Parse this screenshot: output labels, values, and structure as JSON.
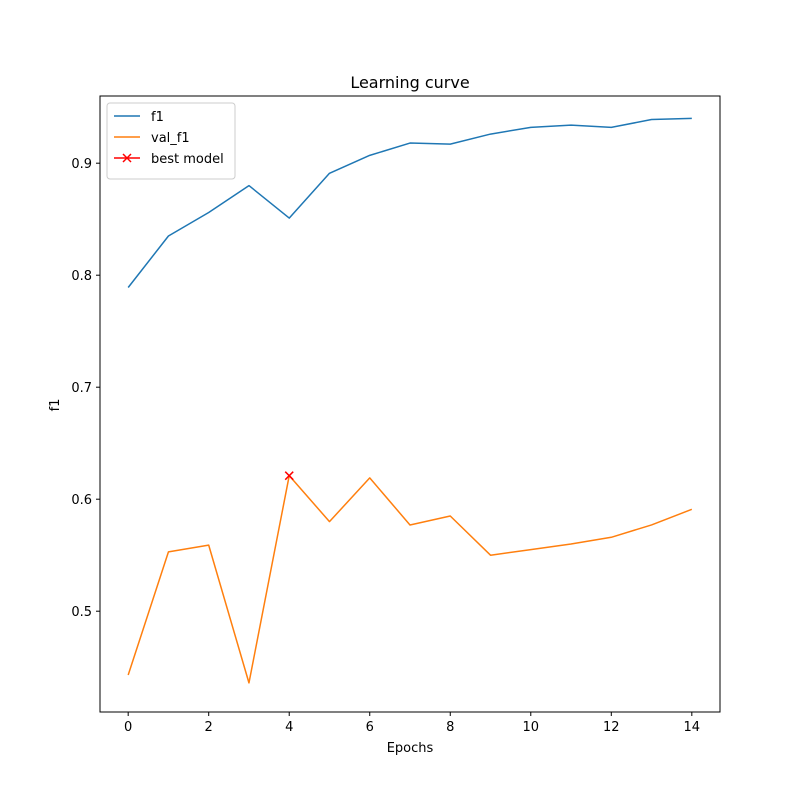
{
  "chart_data": {
    "type": "line",
    "title": "Learning curve",
    "xlabel": "Epochs",
    "ylabel": "f1",
    "xlim": [
      -0.7,
      14.7
    ],
    "ylim": [
      0.41,
      0.96
    ],
    "xticks": [
      0,
      2,
      4,
      6,
      8,
      10,
      12,
      14
    ],
    "yticks": [
      0.5,
      0.6,
      0.7,
      0.8,
      0.9
    ],
    "ytick_labels": [
      "0.5",
      "0.6",
      "0.7",
      "0.8",
      "0.9"
    ],
    "grid": false,
    "legend_position": "top-left",
    "x": [
      0,
      1,
      2,
      3,
      4,
      5,
      6,
      7,
      8,
      9,
      10,
      11,
      12,
      13,
      14
    ],
    "series": [
      {
        "name": "f1",
        "color": "#1f77b4",
        "values": [
          0.789,
          0.835,
          0.856,
          0.88,
          0.851,
          0.891,
          0.907,
          0.918,
          0.917,
          0.926,
          0.932,
          0.934,
          0.932,
          0.939,
          0.94
        ]
      },
      {
        "name": "val_f1",
        "color": "#ff7f0e",
        "values": [
          0.443,
          0.553,
          0.559,
          0.436,
          0.621,
          0.58,
          0.619,
          0.577,
          0.585,
          0.55,
          0.555,
          0.56,
          0.566,
          0.577,
          0.591
        ]
      }
    ],
    "markers": [
      {
        "name": "best model",
        "color": "#ff0000",
        "marker": "x",
        "x": 4,
        "y": 0.621
      }
    ]
  }
}
